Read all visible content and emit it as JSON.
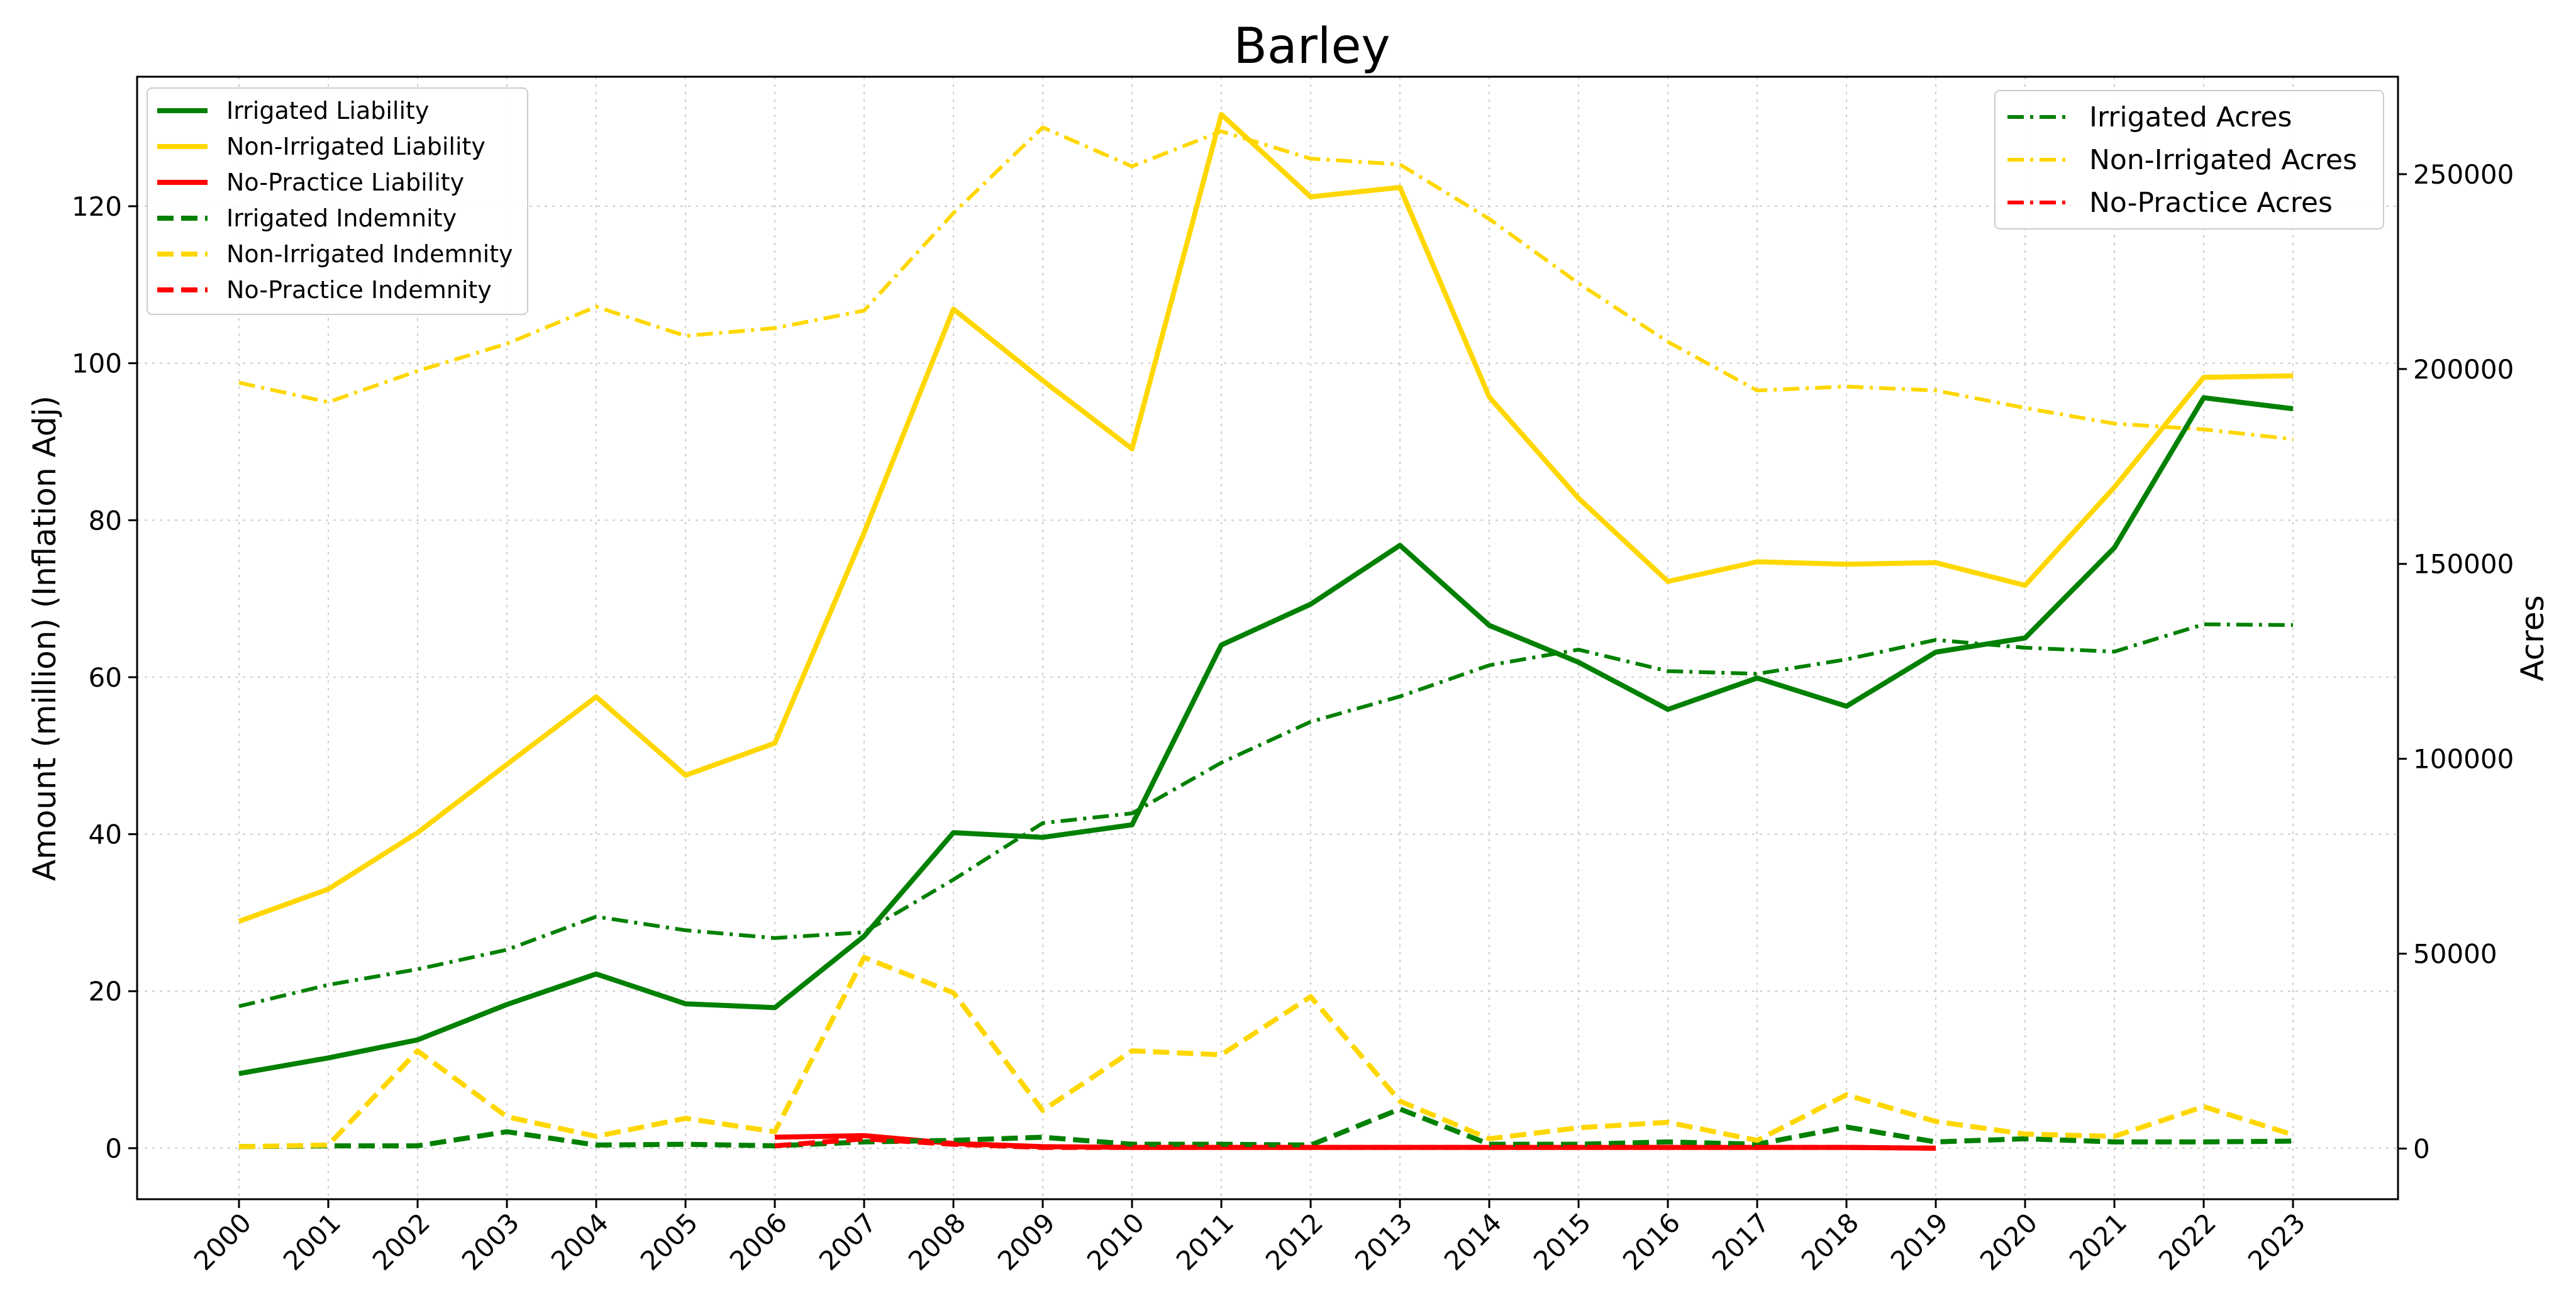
{
  "chart_data": {
    "type": "line",
    "title": "Barley",
    "xlabel": "",
    "ylabel": "Amount (million) (Inflation Adj)",
    "y2label": "Acres",
    "categories": [
      "2000",
      "2001",
      "2002",
      "2003",
      "2004",
      "2005",
      "2006",
      "2007",
      "2008",
      "2009",
      "2010",
      "2011",
      "2012",
      "2013",
      "2014",
      "2015",
      "2016",
      "2017",
      "2018",
      "2019",
      "2020",
      "2021",
      "2022",
      "2023"
    ],
    "ylim": [
      -6.5,
      136.5
    ],
    "y2lim": [
      -13000,
      275000
    ],
    "yticks": [
      0,
      20,
      40,
      60,
      80,
      100,
      120
    ],
    "y2ticks": [
      0,
      50000,
      100000,
      150000,
      200000,
      250000
    ],
    "grid": true,
    "legend_left_position": "upper-left",
    "legend_right_position": "upper-right",
    "colors": {
      "irrigated": "#008000",
      "non_irrigated": "#FFD700",
      "no_practice": "#FF0000"
    },
    "series_left": [
      {
        "name": "Irrigated Liability",
        "color": "#008000",
        "style": "solid",
        "start": 0,
        "values": [
          9.5,
          11.5,
          13.8,
          18.3,
          22.2,
          18.4,
          17.9,
          27.0,
          40.2,
          39.6,
          41.2,
          64.1,
          69.3,
          76.8,
          66.6,
          61.9,
          55.9,
          59.9,
          56.3,
          63.2,
          65.0,
          76.5,
          95.6,
          94.2
        ]
      },
      {
        "name": "Non-Irrigated Liability",
        "color": "#FFD700",
        "style": "solid",
        "start": 0,
        "values": [
          28.9,
          33.0,
          40.2,
          48.9,
          57.5,
          47.5,
          51.6,
          78.4,
          106.9,
          97.8,
          89.1,
          131.7,
          121.2,
          122.4,
          95.7,
          82.8,
          72.2,
          74.7,
          74.4,
          74.6,
          71.7,
          84.2,
          98.2,
          98.4
        ]
      },
      {
        "name": "No-Practice Liability",
        "color": "#FF0000",
        "style": "solid",
        "start": 6,
        "values": [
          1.4,
          1.6,
          0.6,
          0.2,
          0.1,
          0.1,
          0.1,
          0.1,
          0.1,
          0.1,
          0.1,
          0.1,
          0.1,
          0.0
        ]
      },
      {
        "name": "Irrigated Indemnity",
        "color": "#008000",
        "style": "dashed",
        "start": 0,
        "values": [
          0.2,
          0.3,
          0.3,
          2.1,
          0.4,
          0.5,
          0.3,
          0.8,
          1.0,
          1.4,
          0.5,
          0.5,
          0.4,
          5.0,
          0.5,
          0.5,
          0.8,
          0.5,
          2.7,
          0.8,
          1.2,
          0.8,
          0.8,
          0.9
        ]
      },
      {
        "name": "Non-Irrigated Indemnity",
        "color": "#FFD700",
        "style": "dashed",
        "start": 0,
        "values": [
          0.2,
          0.4,
          12.4,
          4.0,
          1.5,
          3.8,
          2.1,
          24.3,
          19.8,
          4.8,
          12.4,
          11.9,
          19.3,
          6.0,
          1.2,
          2.6,
          3.3,
          1.0,
          6.8,
          3.4,
          1.8,
          1.5,
          5.3,
          1.7
        ]
      },
      {
        "name": "No-Practice Indemnity",
        "color": "#FF0000",
        "style": "dashed",
        "start": 6,
        "values": [
          0.3,
          1.2,
          0.5,
          0.1,
          0.1,
          0.1,
          0.1,
          0.1,
          0.1,
          0.1,
          0.1,
          0.1,
          0.1,
          0.0
        ]
      }
    ],
    "series_right": [
      {
        "name": "Irrigated Acres",
        "color": "#008000",
        "style": "dashdot",
        "start": 0,
        "values": [
          36500,
          42000,
          46000,
          51000,
          59500,
          56000,
          54000,
          55500,
          69000,
          83500,
          86000,
          99000,
          109500,
          116000,
          124000,
          128000,
          122500,
          121800,
          125500,
          130500,
          128500,
          127500,
          134500,
          134300
        ]
      },
      {
        "name": "Non-Irrigated Acres",
        "color": "#FFD700",
        "style": "dashdot",
        "start": 0,
        "values": [
          196500,
          191500,
          199500,
          206500,
          216000,
          208500,
          210500,
          215000,
          240000,
          262000,
          252000,
          261000,
          254000,
          252500,
          238500,
          222000,
          207000,
          194500,
          195500,
          194500,
          190000,
          186000,
          184500,
          182000
        ]
      },
      {
        "name": "No-Practice Acres",
        "color": "#FF0000",
        "style": "dashdot",
        "start": 6,
        "values": [
          3000,
          3200,
          1200,
          300,
          200,
          200,
          200,
          200,
          200,
          200,
          200,
          200,
          200,
          100
        ]
      }
    ]
  }
}
